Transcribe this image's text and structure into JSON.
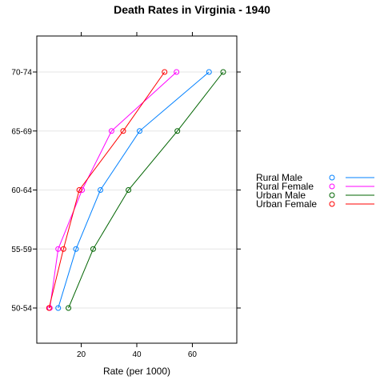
{
  "chart_data": {
    "type": "line",
    "title": "Death Rates in Virginia - 1940",
    "xlabel": "Rate (per 1000)",
    "ylabel": "",
    "xlim": [
      4,
      76
    ],
    "x_ticks": [
      20,
      40,
      60
    ],
    "categories": [
      "50-54",
      "55-59",
      "60-64",
      "65-69",
      "70-74"
    ],
    "grid": "horizontal lines at each category",
    "legend_position": "right",
    "series": [
      {
        "name": "Rural Male",
        "color": "#0080ff",
        "values": [
          11.7,
          18.1,
          26.9,
          41.0,
          66.0
        ]
      },
      {
        "name": "Rural Female",
        "color": "#ff00ff",
        "values": [
          8.7,
          11.7,
          20.3,
          30.9,
          54.3
        ]
      },
      {
        "name": "Urban Male",
        "color": "#006400",
        "values": [
          15.4,
          24.3,
          37.0,
          54.6,
          71.1
        ]
      },
      {
        "name": "Urban Female",
        "color": "#ff0000",
        "values": [
          8.4,
          13.6,
          19.3,
          35.1,
          50.0
        ]
      }
    ]
  }
}
